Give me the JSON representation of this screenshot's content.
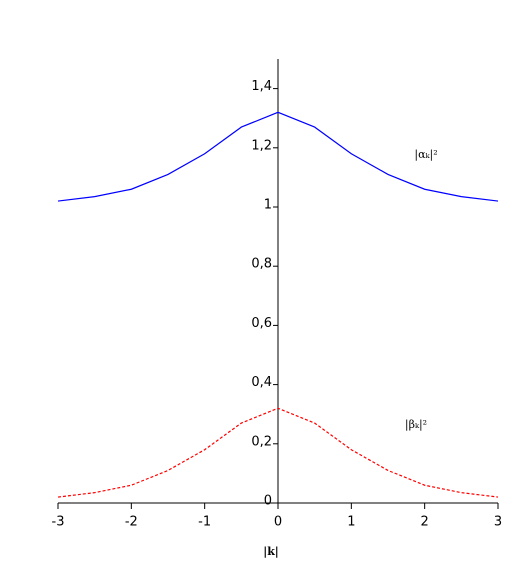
{
  "chart_data": {
    "type": "line",
    "x_label": "|k|",
    "x": [
      -3,
      -2.5,
      -2,
      -1.5,
      -1,
      -0.5,
      0,
      0.5,
      1,
      1.5,
      2,
      2.5,
      3
    ],
    "series": [
      {
        "name": "|αₖ|²",
        "color": "#0000ff",
        "values": [
          1.02,
          1.035,
          1.06,
          1.11,
          1.18,
          1.27,
          1.32,
          1.27,
          1.18,
          1.11,
          1.06,
          1.035,
          1.02
        ]
      },
      {
        "name": "|βₖ|²",
        "color": "#ff0000",
        "values": [
          0.02,
          0.035,
          0.06,
          0.11,
          0.18,
          0.27,
          0.32,
          0.27,
          0.18,
          0.11,
          0.06,
          0.035,
          0.02
        ]
      }
    ],
    "xlim": [
      -3,
      3
    ],
    "xticks": [
      -3,
      -2,
      -1,
      0,
      1,
      2,
      3
    ],
    "ylim": [
      0,
      1.5
    ],
    "yticks": [
      0,
      {
        "value": 0.2,
        "label": "0,2"
      },
      {
        "value": 0.4,
        "label": "0,4"
      },
      {
        "value": 0.6,
        "label": "0,6"
      },
      {
        "value": 0.8,
        "label": "0,8"
      },
      1,
      {
        "value": 1.2,
        "label": "1,2"
      },
      {
        "value": 1.4,
        "label": "1,4"
      }
    ],
    "grid": false
  }
}
